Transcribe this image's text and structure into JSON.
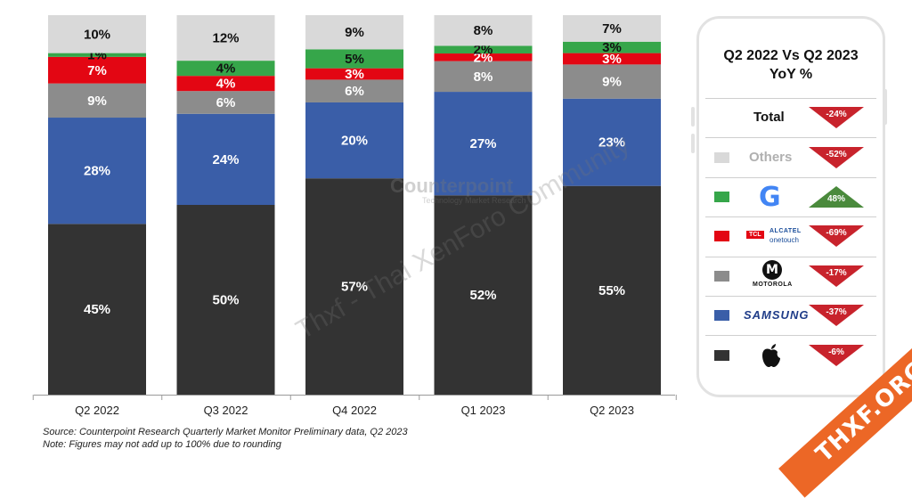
{
  "chart_data": {
    "type": "bar",
    "stacked": true,
    "title": "",
    "xlabel": "",
    "ylabel": "",
    "ylim": [
      0,
      100
    ],
    "grid": false,
    "categories": [
      "Q2 2022",
      "Q3 2022",
      "Q4 2022",
      "Q1 2023",
      "Q2 2023"
    ],
    "series": [
      {
        "key": "apple",
        "color": "#333333",
        "label_color": "#ffffff",
        "values": [
          45,
          50,
          57,
          52,
          55
        ]
      },
      {
        "key": "samsung",
        "color": "#3a5ea8",
        "label_color": "#ffffff",
        "values": [
          28,
          24,
          20,
          27,
          23
        ]
      },
      {
        "key": "motorola",
        "color": "#8c8c8c",
        "label_color": "#ffffff",
        "values": [
          9,
          6,
          6,
          8,
          9
        ]
      },
      {
        "key": "tcl",
        "color": "#e30613",
        "label_color": "#ffffff",
        "values": [
          7,
          4,
          3,
          2,
          3
        ]
      },
      {
        "key": "google",
        "color": "#36a64a",
        "label_color": "#111111",
        "values": [
          1,
          4,
          5,
          2,
          3
        ]
      },
      {
        "key": "others",
        "color": "#d9d9d9",
        "label_color": "#111111",
        "values": [
          10,
          12,
          9,
          8,
          7
        ]
      }
    ],
    "labels": [
      [
        "45%",
        "28%",
        "9%",
        "7%",
        "1%",
        "10%"
      ],
      [
        "50%",
        "24%",
        "6%",
        "4%",
        "4%",
        "12%"
      ],
      [
        "57%",
        "20%",
        "6%",
        "3%",
        "5%",
        "9%"
      ],
      [
        "52%",
        "27%",
        "8%",
        "2%",
        "2%",
        "8%"
      ],
      [
        "55%",
        "23%",
        "9%",
        "3%",
        "3%",
        "7%"
      ]
    ]
  },
  "source": "Source: Counterpoint Research Quarterly Market Monitor Preliminary data, Q2 2023",
  "note": "Note: Figures may not add up to 100% due to rounding",
  "yoy_panel": {
    "title_line1": "Q2 2022 Vs Q2 2023",
    "title_line2": "YoY %",
    "rows": [
      {
        "brand": "Total",
        "value": "-24%",
        "direction": "down",
        "swatch": ""
      },
      {
        "brand": "Others",
        "value": "-52%",
        "direction": "down",
        "swatch": "#d9d9d9"
      },
      {
        "brand": "Google",
        "logo": "G",
        "value": "48%",
        "direction": "up",
        "swatch": "#36a64a"
      },
      {
        "brand": "TCL Alcatel",
        "logo_text": "TCL",
        "logo_sub1": "ALCATEL",
        "logo_sub2": "onetouch",
        "value": "-69%",
        "direction": "down",
        "swatch": "#e30613"
      },
      {
        "brand": "Motorola",
        "logo_text": "MOTOROLA",
        "value": "-17%",
        "direction": "down",
        "swatch": "#8c8c8c"
      },
      {
        "brand": "Samsung",
        "logo_text": "SAMSUNG",
        "value": "-37%",
        "direction": "down",
        "swatch": "#3a5ea8"
      },
      {
        "brand": "Apple",
        "value": "-6%",
        "direction": "down",
        "swatch": "#333333"
      }
    ],
    "down_color": "#c8232c",
    "up_color": "#4a8a3c"
  },
  "watermarks": {
    "diagonal": "Thxf - Thai XenForo Community",
    "corner": "THXF.ORG",
    "brand": "Counterpoint",
    "brand_sub": "Technology Market Research"
  }
}
